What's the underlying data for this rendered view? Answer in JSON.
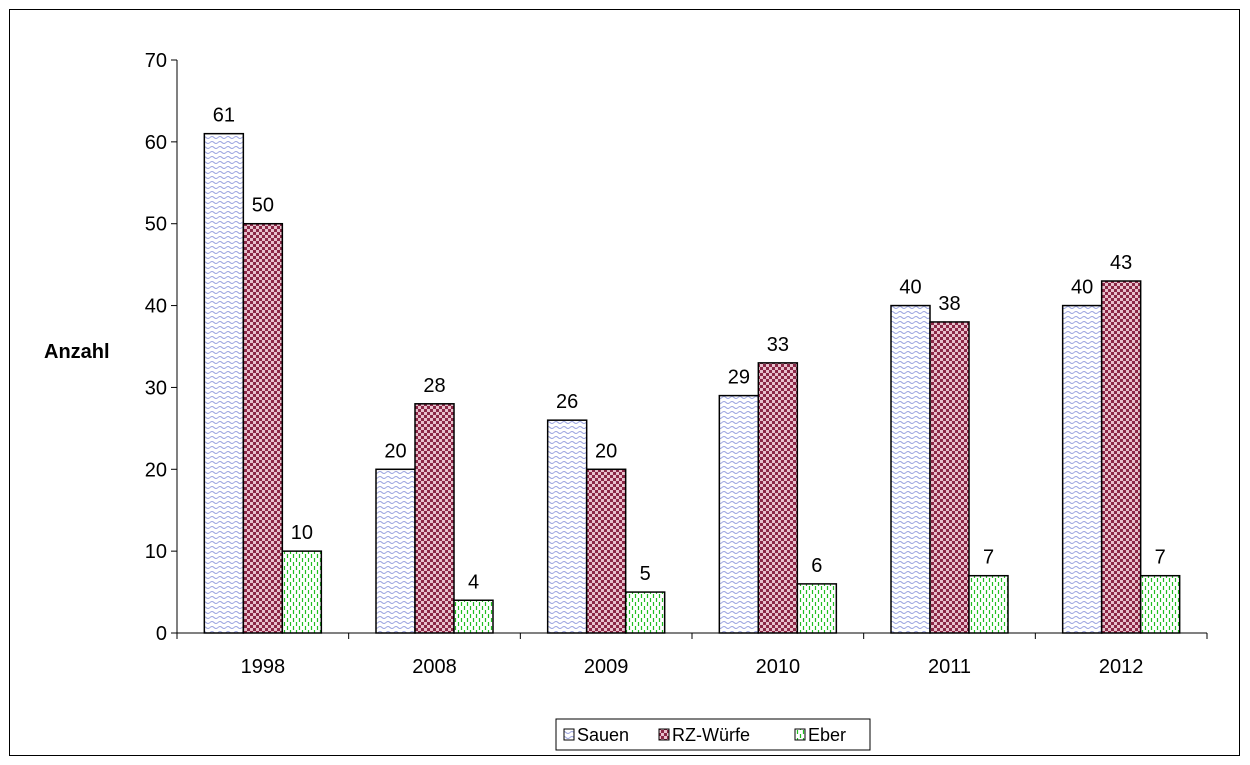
{
  "chart_data": {
    "type": "bar",
    "title": "",
    "xlabel": "",
    "ylabel": "Anzahl",
    "ylim": [
      0,
      70
    ],
    "yticks": [
      0,
      10,
      20,
      30,
      40,
      50,
      60,
      70
    ],
    "categories": [
      "1998",
      "2008",
      "2009",
      "2010",
      "2011",
      "2012"
    ],
    "series": [
      {
        "name": "Sauen",
        "values": [
          61,
          20,
          26,
          29,
          40,
          40
        ],
        "color": "#c8cdf0",
        "pattern": "wave"
      },
      {
        "name": "RZ-Würfe",
        "values": [
          50,
          28,
          20,
          33,
          38,
          43
        ],
        "color": "#8b2746",
        "pattern": "checker"
      },
      {
        "name": "Eber",
        "values": [
          10,
          4,
          5,
          6,
          7,
          7
        ],
        "color": "#22c022",
        "pattern": "dashes"
      }
    ],
    "data_labels": true,
    "grid": false,
    "legend_position": "bottom"
  }
}
